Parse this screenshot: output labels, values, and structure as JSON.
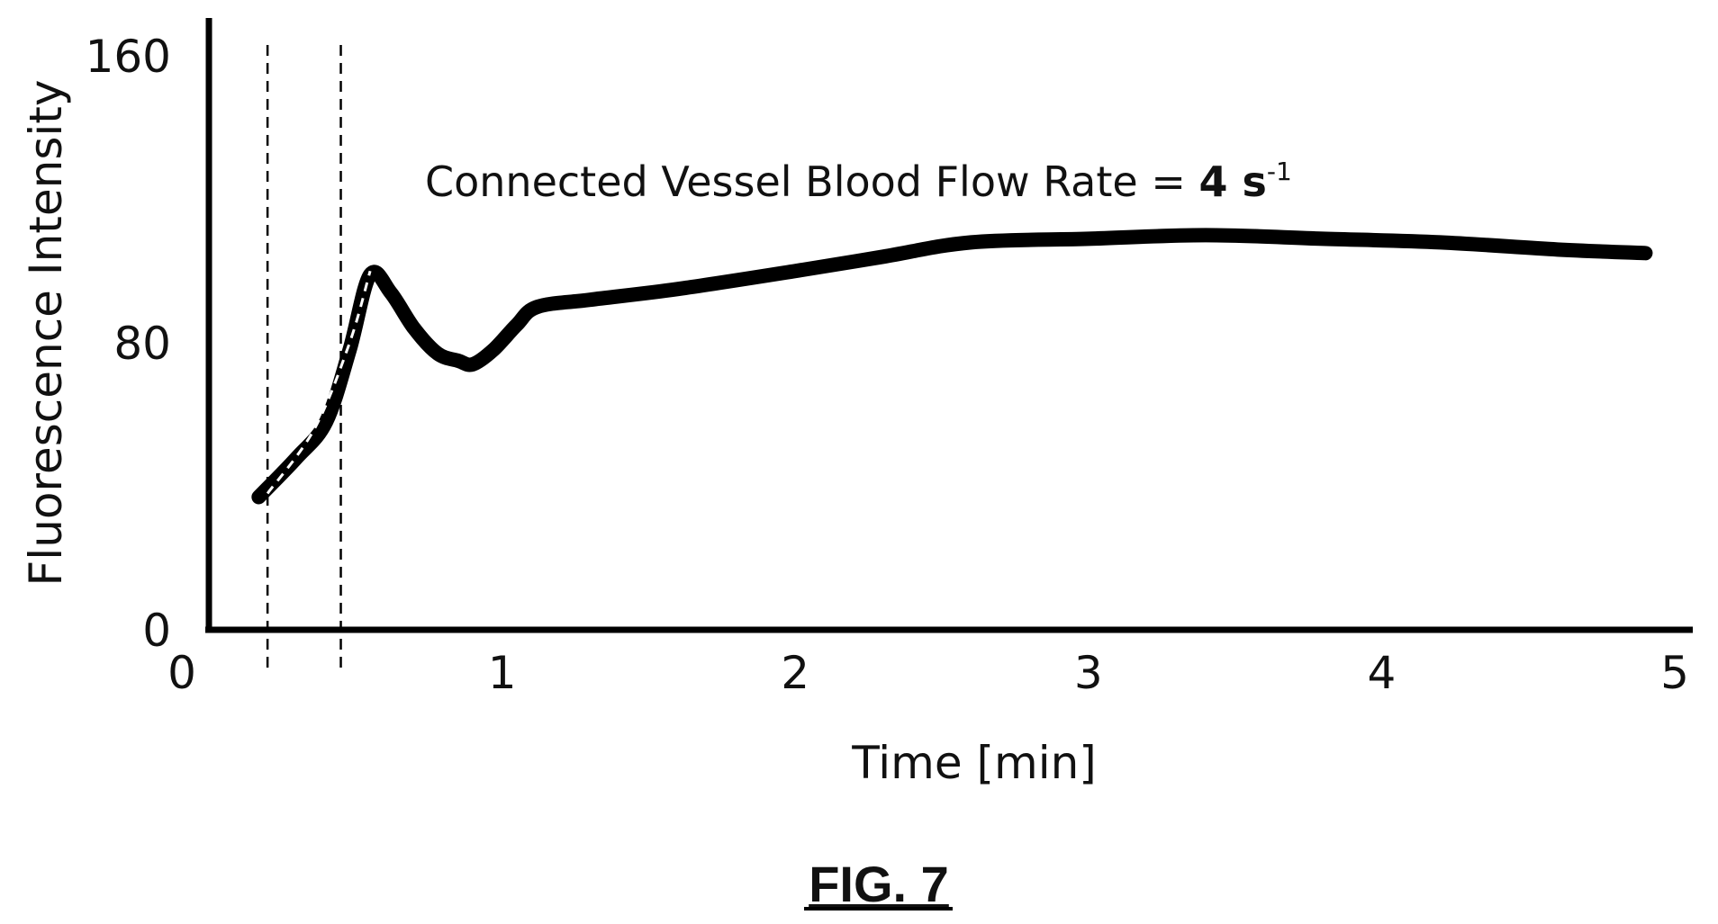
{
  "chart_data": {
    "type": "line",
    "xlabel": "Time [min]",
    "ylabel": "Fluorescence Intensity",
    "xlim": [
      0,
      5
    ],
    "ylim": [
      0,
      160
    ],
    "x_ticks": [
      "0",
      "1",
      "2",
      "3",
      "4",
      "5"
    ],
    "y_ticks": [
      "0",
      "80",
      "160"
    ],
    "x_tick_values": [
      0,
      1,
      2,
      3,
      4,
      5
    ],
    "y_tick_values": [
      0,
      80,
      160
    ],
    "grid": false,
    "series": [
      {
        "x": [
          0.17,
          0.3,
          0.4,
          0.48,
          0.55,
          0.62,
          0.7,
          0.78,
          0.85,
          0.9,
          0.97,
          1.05,
          1.12,
          1.3,
          1.6,
          2.0,
          2.3,
          2.6,
          3.0,
          3.4,
          3.8,
          4.2,
          4.6,
          4.9
        ],
        "y": [
          37,
          48,
          58,
          78,
          99,
          94,
          84,
          77,
          75,
          74,
          78,
          85,
          90,
          92,
          95,
          100,
          104,
          108,
          109,
          110,
          109,
          108,
          106,
          105
        ]
      }
    ],
    "reference_series": [
      {
        "style": "dashed",
        "x": [
          0.2,
          0.36,
          0.48,
          0.55
        ],
        "y": [
          38,
          56,
          80,
          100
        ]
      }
    ],
    "vertical_lines": [
      {
        "x": 0.2,
        "style": "dashed"
      },
      {
        "x": 0.45,
        "style": "dashed"
      }
    ],
    "annotation": {
      "text_prefix": "Connected Vessel Blood Flow Rate  = ",
      "text_value": "4 s",
      "text_superscript": "-1"
    }
  },
  "figure_label": "FIG. 7"
}
